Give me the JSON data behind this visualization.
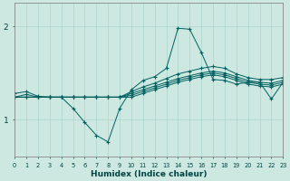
{
  "bg_color": "#cce8e0",
  "line_color": "#006060",
  "xlabel": "Humidex (Indice chaleur)",
  "xlim": [
    0,
    23
  ],
  "ylim": [
    0.6,
    2.25
  ],
  "yticks": [
    1,
    2
  ],
  "xticks": [
    0,
    1,
    2,
    3,
    4,
    5,
    6,
    7,
    8,
    9,
    10,
    11,
    12,
    13,
    14,
    15,
    16,
    17,
    18,
    19,
    20,
    21,
    22,
    23
  ],
  "series": [
    [
      1.28,
      1.3,
      1.25,
      1.24,
      1.24,
      1.12,
      0.97,
      0.83,
      0.76,
      1.12,
      1.32,
      1.42,
      1.46,
      1.55,
      1.98,
      1.97,
      1.72,
      1.43,
      1.42,
      1.38,
      1.4,
      1.4,
      1.22,
      1.4
    ],
    [
      1.24,
      1.27,
      1.24,
      1.24,
      1.24,
      1.24,
      1.24,
      1.24,
      1.24,
      1.24,
      1.3,
      1.35,
      1.39,
      1.44,
      1.49,
      1.52,
      1.55,
      1.57,
      1.55,
      1.49,
      1.45,
      1.43,
      1.43,
      1.45
    ],
    [
      1.24,
      1.24,
      1.24,
      1.24,
      1.24,
      1.24,
      1.24,
      1.24,
      1.24,
      1.24,
      1.28,
      1.32,
      1.36,
      1.4,
      1.44,
      1.47,
      1.5,
      1.52,
      1.5,
      1.46,
      1.42,
      1.4,
      1.39,
      1.42
    ],
    [
      1.24,
      1.24,
      1.24,
      1.24,
      1.24,
      1.24,
      1.24,
      1.24,
      1.24,
      1.24,
      1.26,
      1.3,
      1.34,
      1.38,
      1.42,
      1.45,
      1.48,
      1.5,
      1.48,
      1.44,
      1.4,
      1.38,
      1.37,
      1.4
    ],
    [
      1.24,
      1.24,
      1.24,
      1.24,
      1.24,
      1.24,
      1.24,
      1.24,
      1.24,
      1.24,
      1.24,
      1.28,
      1.32,
      1.36,
      1.4,
      1.43,
      1.46,
      1.48,
      1.46,
      1.42,
      1.38,
      1.36,
      1.35,
      1.38
    ]
  ],
  "grid_color": "#aad4cc",
  "tick_label_color": "#004444",
  "spine_color": "#888888"
}
